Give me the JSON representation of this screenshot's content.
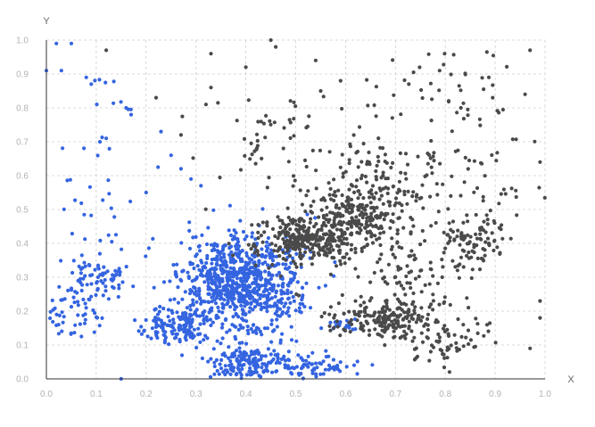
{
  "chart_data": {
    "type": "scatter",
    "title": "",
    "xlabel": "X",
    "ylabel": "Y",
    "xlim": [
      0.0,
      1.0
    ],
    "ylim": [
      0.0,
      1.0
    ],
    "x_ticks": [
      "0.0",
      "0.1",
      "0.2",
      "0.3",
      "0.4",
      "0.5",
      "0.6",
      "0.7",
      "0.8",
      "0.9",
      "1.0"
    ],
    "y_ticks": [
      "0.0",
      "0.1",
      "0.2",
      "0.3",
      "0.4",
      "0.5",
      "0.6",
      "0.7",
      "0.8",
      "0.9",
      "1.0"
    ],
    "grid": true,
    "legend": "none",
    "series": [
      {
        "color": "#3464e0",
        "clusters": [
          {
            "cx": 0.39,
            "cy": 0.28,
            "sx": 0.06,
            "sy": 0.07,
            "n": 800
          },
          {
            "cx": 0.27,
            "cy": 0.16,
            "sx": 0.03,
            "sy": 0.03,
            "n": 150
          },
          {
            "cx": 0.41,
            "cy": 0.05,
            "sx": 0.04,
            "sy": 0.03,
            "n": 180
          },
          {
            "cx": 0.54,
            "cy": 0.04,
            "sx": 0.04,
            "sy": 0.02,
            "n": 60
          },
          {
            "cx": 0.1,
            "cy": 0.3,
            "sx": 0.03,
            "sy": 0.03,
            "n": 70
          },
          {
            "cx": 0.05,
            "cy": 0.2,
            "sx": 0.03,
            "sy": 0.04,
            "n": 50
          },
          {
            "cx": 0.6,
            "cy": 0.16,
            "sx": 0.02,
            "sy": 0.01,
            "n": 20
          },
          {
            "cx": 0.1,
            "cy": 0.6,
            "sx": 0.06,
            "sy": 0.2,
            "n": 45
          }
        ],
        "points": [
          [
            0.02,
            0.99
          ],
          [
            0.05,
            0.99
          ],
          [
            0.0,
            0.91
          ],
          [
            0.03,
            0.91
          ],
          [
            0.08,
            0.89
          ],
          [
            0.09,
            0.87
          ],
          [
            0.16,
            0.8
          ],
          [
            0.17,
            0.78
          ],
          [
            0.12,
            0.71
          ],
          [
            0.15,
            0.0
          ],
          [
            0.2,
            0.55
          ],
          [
            0.25,
            0.66
          ],
          [
            0.27,
            0.62
          ],
          [
            0.29,
            0.59
          ],
          [
            0.31,
            0.57
          ]
        ]
      },
      {
        "color": "#4a4a4a",
        "clusters": [
          {
            "cx": 0.52,
            "cy": 0.41,
            "sx": 0.05,
            "sy": 0.04,
            "n": 300
          },
          {
            "cx": 0.63,
            "cy": 0.48,
            "sx": 0.05,
            "sy": 0.05,
            "n": 250
          },
          {
            "cx": 0.68,
            "cy": 0.18,
            "sx": 0.05,
            "sy": 0.03,
            "n": 200
          },
          {
            "cx": 0.86,
            "cy": 0.4,
            "sx": 0.04,
            "sy": 0.04,
            "n": 90
          },
          {
            "cx": 0.66,
            "cy": 0.6,
            "sx": 0.05,
            "sy": 0.06,
            "n": 80
          },
          {
            "cx": 0.8,
            "cy": 0.12,
            "sx": 0.05,
            "sy": 0.04,
            "n": 70
          },
          {
            "cx": 0.75,
            "cy": 0.3,
            "sx": 0.06,
            "sy": 0.04,
            "n": 60
          },
          {
            "cx": 0.85,
            "cy": 0.6,
            "sx": 0.08,
            "sy": 0.07,
            "n": 60
          },
          {
            "cx": 0.8,
            "cy": 0.85,
            "sx": 0.08,
            "sy": 0.07,
            "n": 50
          },
          {
            "cx": 0.45,
            "cy": 0.7,
            "sx": 0.08,
            "sy": 0.08,
            "n": 60
          }
        ],
        "points": [
          [
            0.45,
            1.0
          ],
          [
            0.46,
            0.98
          ],
          [
            0.12,
            0.97
          ],
          [
            0.33,
            0.96
          ],
          [
            0.4,
            0.92
          ],
          [
            0.54,
            0.94
          ],
          [
            0.22,
            0.83
          ],
          [
            0.32,
            0.81
          ],
          [
            0.27,
            0.72
          ],
          [
            0.33,
            0.86
          ],
          [
            0.97,
            0.97
          ],
          [
            0.96,
            0.84
          ],
          [
            0.99,
            0.64
          ],
          [
            0.99,
            0.23
          ],
          [
            0.99,
            0.18
          ],
          [
            0.97,
            0.09
          ],
          [
            0.55,
            0.85
          ],
          [
            0.59,
            0.88
          ]
        ]
      }
    ]
  }
}
